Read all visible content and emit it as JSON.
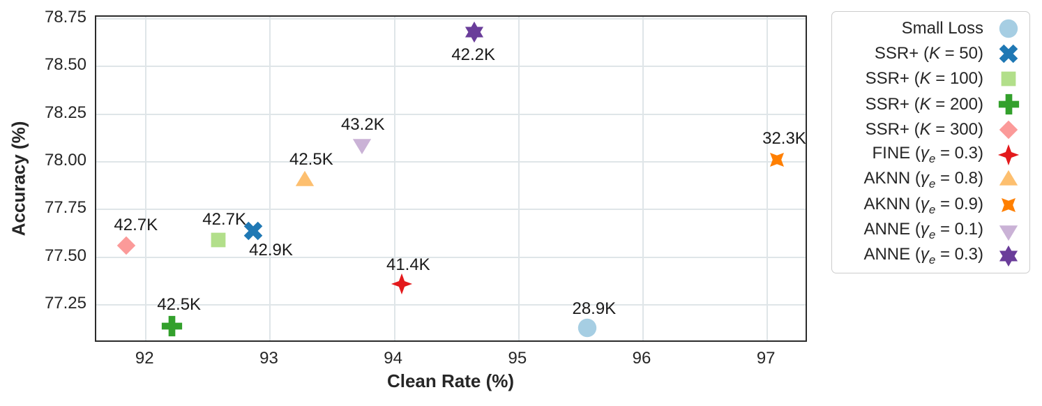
{
  "chart_data": {
    "type": "scatter",
    "title": "",
    "xlabel": "Clean Rate (%)",
    "ylabel": "Accuracy (%)",
    "xlim": [
      91.6,
      97.33
    ],
    "ylim": [
      77.05,
      78.76
    ],
    "grid": true,
    "legend_position": "outside-right",
    "xticks": [
      {
        "value": 92,
        "label": "92"
      },
      {
        "value": 93,
        "label": "93"
      },
      {
        "value": 94,
        "label": "94"
      },
      {
        "value": 95,
        "label": "95"
      },
      {
        "value": 96,
        "label": "96"
      },
      {
        "value": 97,
        "label": "97"
      }
    ],
    "yticks": [
      {
        "value": 77.25,
        "label": "77.25"
      },
      {
        "value": 77.5,
        "label": "77.50"
      },
      {
        "value": 77.75,
        "label": "77.75"
      },
      {
        "value": 78.0,
        "label": "78.00"
      },
      {
        "value": 78.25,
        "label": "78.25"
      },
      {
        "value": 78.5,
        "label": "78.50"
      },
      {
        "value": 78.75,
        "label": "78.75"
      }
    ],
    "series": [
      {
        "id": "small-loss",
        "label": "Small Loss",
        "label_parts": {
          "pre": "Small Loss",
          "sym": "",
          "sub": "",
          "post": ""
        },
        "marker": "circle",
        "color": "#a6cee3",
        "x": 95.55,
        "y": 77.13,
        "point_label": "28.9K",
        "label_dx": 10,
        "label_dy": -27,
        "size": 28
      },
      {
        "id": "ssr-k-50",
        "label": "SSR+ (K = 50)",
        "label_parts": {
          "pre": "SSR+ (",
          "sym": "K",
          "sub": "",
          "post": " = 50)"
        },
        "marker": "x",
        "color": "#1f78b4",
        "x": 92.86,
        "y": 77.64,
        "point_label": "42.9K",
        "label_dx": 26,
        "label_dy": 28,
        "size": 30
      },
      {
        "id": "ssr-k-100",
        "label": "SSR+ (K = 100)",
        "label_parts": {
          "pre": "SSR+ (",
          "sym": "K",
          "sub": "",
          "post": " = 100)"
        },
        "marker": "square",
        "color": "#b2df8a",
        "x": 92.58,
        "y": 77.59,
        "point_label": "42.7K",
        "label_dx": 9,
        "label_dy": -29,
        "size": 22
      },
      {
        "id": "ssr-k-200",
        "label": "SSR+ (K = 200)",
        "label_parts": {
          "pre": "SSR+ (",
          "sym": "K",
          "sub": "",
          "post": " = 200)"
        },
        "marker": "plus",
        "color": "#33a02c",
        "x": 92.21,
        "y": 77.14,
        "point_label": "42.5K",
        "label_dx": 10,
        "label_dy": -30,
        "size": 31
      },
      {
        "id": "ssr-k-300",
        "label": "SSR+ (K = 300)",
        "label_parts": {
          "pre": "SSR+ (",
          "sym": "K",
          "sub": "",
          "post": " = 300)"
        },
        "marker": "diamond",
        "color": "#fb9a99",
        "x": 91.84,
        "y": 77.56,
        "point_label": "42.7K",
        "label_dx": 14,
        "label_dy": -29,
        "size": 28
      },
      {
        "id": "fine-03",
        "label": "FINE (γe = 0.3)",
        "label_parts": {
          "pre": "FINE (",
          "sym": "γ",
          "sub": "e",
          "post": " = 0.3)"
        },
        "marker": "star4",
        "color": "#e31a1c",
        "x": 94.06,
        "y": 77.36,
        "point_label": "41.4K",
        "label_dx": 9,
        "label_dy": -27,
        "size": 32
      },
      {
        "id": "aknn-08",
        "label": "AKNN (γe = 0.8)",
        "label_parts": {
          "pre": "AKNN (",
          "sym": "γ",
          "sub": "e",
          "post": " = 0.8)"
        },
        "marker": "triangle-up",
        "color": "#fdbf6f",
        "x": 93.28,
        "y": 77.9,
        "point_label": "42.5K",
        "label_dx": 9,
        "label_dy": -30,
        "size": 30
      },
      {
        "id": "aknn-09",
        "label": "AKNN (γe = 0.9)",
        "label_parts": {
          "pre": "AKNN (",
          "sym": "γ",
          "sub": "e",
          "post": " = 0.9)"
        },
        "marker": "star4-rot",
        "color": "#ff7f00",
        "x": 97.08,
        "y": 78.01,
        "point_label": "32.3K",
        "label_dx": 10,
        "label_dy": -30,
        "size": 30
      },
      {
        "id": "anne-01",
        "label": "ANNE (γe = 0.1)",
        "label_parts": {
          "pre": "ANNE (",
          "sym": "γ",
          "sub": "e",
          "post": " = 0.1)"
        },
        "marker": "triangle-down",
        "color": "#cab2d6",
        "x": 93.74,
        "y": 78.09,
        "point_label": "43.2K",
        "label_dx": 1,
        "label_dy": -28,
        "size": 30
      },
      {
        "id": "anne-03",
        "label": "ANNE (γe = 0.3)",
        "label_parts": {
          "pre": "ANNE (",
          "sym": "γ",
          "sub": "e",
          "post": " = 0.3)"
        },
        "marker": "star6",
        "color": "#6a3d9a",
        "x": 94.64,
        "y": 78.68,
        "point_label": "42.2K",
        "label_dx": -1,
        "label_dy": 33,
        "size": 32
      }
    ],
    "style_colors": {
      "grid": "#dfe5e8",
      "spine": "#2b2b2b",
      "tick_text": "#262626",
      "point_label_text": "#1a1a1a",
      "legend_border": "#cccccc",
      "background": "#ffffff"
    }
  }
}
